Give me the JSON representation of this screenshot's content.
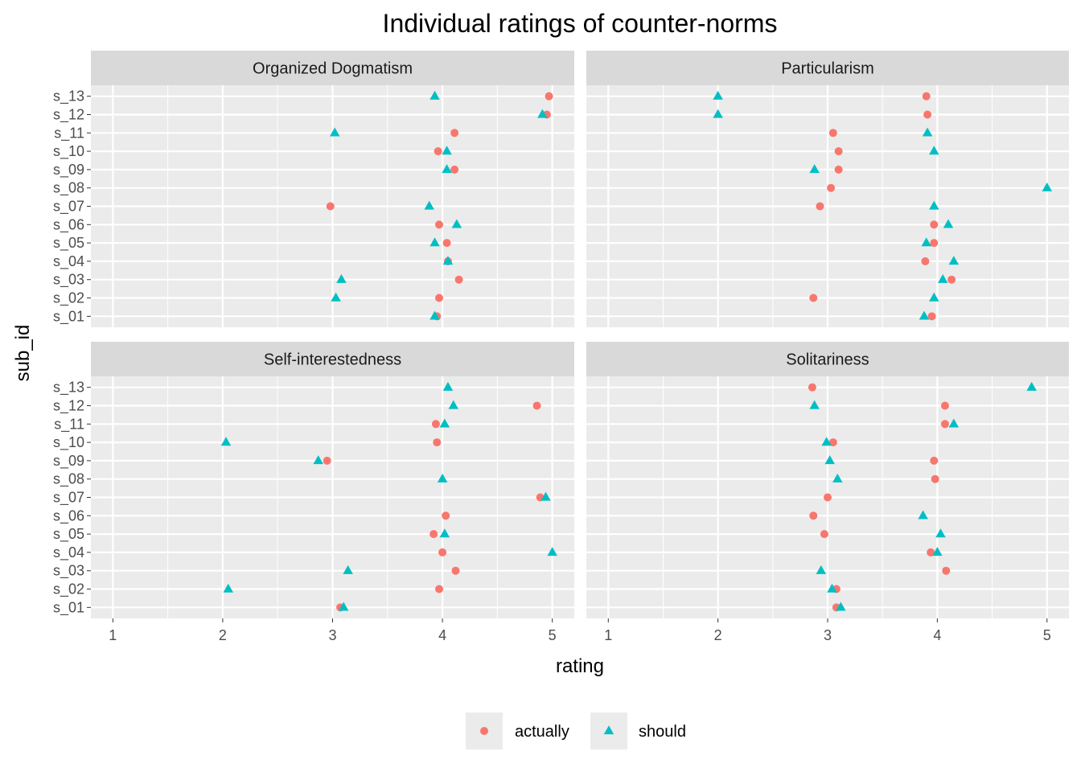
{
  "chart_data": {
    "type": "scatter",
    "title": "Individual ratings of counter-norms",
    "xlabel": "rating",
    "ylabel": "sub_id",
    "xlim": [
      0.8,
      5.2
    ],
    "x_ticks": [
      "1",
      "2",
      "3",
      "4",
      "5"
    ],
    "y_categories": [
      "s_01",
      "s_02",
      "s_03",
      "s_04",
      "s_05",
      "s_06",
      "s_07",
      "s_08",
      "s_09",
      "s_10",
      "s_11",
      "s_12",
      "s_13"
    ],
    "grid": true,
    "legend_position": "bottom",
    "series_styles": [
      {
        "name": "actually",
        "color": "#F8766D",
        "shape": "circle"
      },
      {
        "name": "should",
        "color": "#00BFC4",
        "shape": "triangle"
      }
    ],
    "panels": [
      {
        "label": "Organized Dogmatism",
        "series": [
          {
            "name": "actually",
            "values": [
              3.95,
              3.97,
              4.15,
              4.05,
              4.04,
              3.97,
              2.98,
              null,
              4.11,
              3.96,
              4.11,
              4.95,
              4.97
            ]
          },
          {
            "name": "should",
            "values": [
              3.93,
              3.03,
              3.08,
              4.05,
              3.93,
              4.13,
              3.88,
              null,
              4.04,
              4.04,
              3.02,
              4.91,
              3.93
            ]
          }
        ]
      },
      {
        "label": "Particularism",
        "series": [
          {
            "name": "actually",
            "values": [
              3.95,
              2.87,
              4.13,
              3.89,
              3.97,
              3.97,
              2.93,
              3.03,
              3.1,
              3.1,
              3.05,
              3.91,
              3.9
            ]
          },
          {
            "name": "should",
            "values": [
              3.88,
              3.97,
              4.05,
              4.15,
              3.9,
              4.1,
              3.97,
              5.0,
              2.88,
              3.97,
              3.91,
              2.0,
              2.0
            ]
          }
        ]
      },
      {
        "label": "Self-interestedness",
        "series": [
          {
            "name": "actually",
            "values": [
              3.07,
              3.97,
              4.12,
              4.0,
              3.92,
              4.03,
              4.89,
              null,
              2.95,
              3.95,
              3.94,
              4.86,
              null
            ]
          },
          {
            "name": "should",
            "values": [
              3.1,
              2.05,
              3.14,
              5.0,
              4.02,
              null,
              4.94,
              4.0,
              2.87,
              2.03,
              4.02,
              4.1,
              4.05
            ]
          }
        ]
      },
      {
        "label": "Solitariness",
        "series": [
          {
            "name": "actually",
            "values": [
              3.08,
              3.08,
              4.08,
              3.94,
              2.97,
              2.87,
              3.0,
              3.98,
              3.97,
              3.05,
              4.07,
              4.07,
              2.86
            ]
          },
          {
            "name": "should",
            "values": [
              3.12,
              3.04,
              2.94,
              4.0,
              4.03,
              3.87,
              null,
              3.09,
              3.02,
              2.99,
              4.15,
              2.88,
              4.86
            ]
          }
        ]
      }
    ]
  }
}
